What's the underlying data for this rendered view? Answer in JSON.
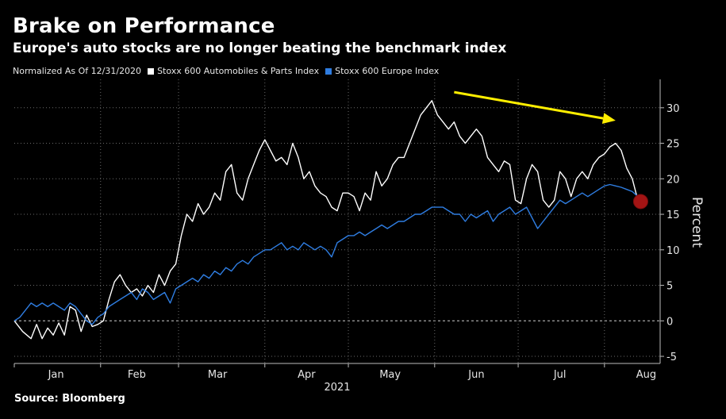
{
  "header": {
    "title": "Brake on Performance",
    "subtitle": "Europe's auto stocks are no longer beating the benchmark index"
  },
  "legend": {
    "note": "Normalized As Of 12/31/2020",
    "items": [
      {
        "label": "Stoxx 600 Automobiles & Parts Index",
        "color": "#ffffff"
      },
      {
        "label": "Stoxx 600 Europe Index",
        "color": "#2f7de1"
      }
    ]
  },
  "footer": {
    "source": "Source: Bloomberg"
  },
  "chart_data": {
    "type": "line",
    "xlabel": "2021",
    "ylabel": "Percent",
    "ylim": [
      -6,
      34
    ],
    "yticks": [
      -5,
      0,
      5,
      10,
      15,
      20,
      25,
      30
    ],
    "xlim": [
      0,
      232
    ],
    "months": [
      {
        "label": "Jan",
        "center": 15,
        "boundary": 0
      },
      {
        "label": "Feb",
        "center": 44,
        "boundary": 31
      },
      {
        "label": "Mar",
        "center": 73,
        "boundary": 59
      },
      {
        "label": "Apr",
        "center": 105,
        "boundary": 90
      },
      {
        "label": "May",
        "center": 135,
        "boundary": 120
      },
      {
        "label": "Jun",
        "center": 166,
        "boundary": 151
      },
      {
        "label": "Jul",
        "center": 196,
        "boundary": 181
      },
      {
        "label": "Aug",
        "center": 227,
        "boundary": 212
      }
    ],
    "grid": true,
    "zero_line": true,
    "axis_side": "right",
    "series": [
      {
        "name": "Stoxx 600 Automobiles & Parts Index",
        "color": "#ffffff",
        "points": [
          [
            0,
            0
          ],
          [
            3,
            -1.5
          ],
          [
            6,
            -2.5
          ],
          [
            8,
            -0.5
          ],
          [
            10,
            -2.5
          ],
          [
            12,
            -1
          ],
          [
            14,
            -2
          ],
          [
            16,
            -0.3
          ],
          [
            18,
            -2
          ],
          [
            20,
            2
          ],
          [
            22,
            1.5
          ],
          [
            24,
            -1.5
          ],
          [
            26,
            0.8
          ],
          [
            28,
            -0.8
          ],
          [
            30,
            -0.5
          ],
          [
            32,
            0
          ],
          [
            34,
            3
          ],
          [
            36,
            5.5
          ],
          [
            38,
            6.5
          ],
          [
            40,
            5
          ],
          [
            42,
            4
          ],
          [
            44,
            4.5
          ],
          [
            46,
            3.5
          ],
          [
            48,
            5
          ],
          [
            50,
            4
          ],
          [
            52,
            6.5
          ],
          [
            54,
            5
          ],
          [
            56,
            7
          ],
          [
            58,
            8
          ],
          [
            60,
            12
          ],
          [
            62,
            15
          ],
          [
            64,
            14
          ],
          [
            66,
            16.5
          ],
          [
            68,
            15
          ],
          [
            70,
            16
          ],
          [
            72,
            18
          ],
          [
            74,
            17
          ],
          [
            76,
            21
          ],
          [
            78,
            22
          ],
          [
            80,
            18
          ],
          [
            82,
            17
          ],
          [
            84,
            20
          ],
          [
            86,
            22
          ],
          [
            88,
            24
          ],
          [
            90,
            25.5
          ],
          [
            92,
            24
          ],
          [
            94,
            22.5
          ],
          [
            96,
            23
          ],
          [
            98,
            22
          ],
          [
            100,
            25
          ],
          [
            102,
            23
          ],
          [
            104,
            20
          ],
          [
            106,
            21
          ],
          [
            108,
            19
          ],
          [
            110,
            18
          ],
          [
            112,
            17.5
          ],
          [
            114,
            16
          ],
          [
            116,
            15.5
          ],
          [
            118,
            18
          ],
          [
            120,
            18
          ],
          [
            122,
            17.5
          ],
          [
            124,
            15.5
          ],
          [
            126,
            18
          ],
          [
            128,
            17
          ],
          [
            130,
            21
          ],
          [
            132,
            19
          ],
          [
            134,
            20
          ],
          [
            136,
            22
          ],
          [
            138,
            23
          ],
          [
            140,
            23
          ],
          [
            142,
            25
          ],
          [
            144,
            27
          ],
          [
            146,
            29
          ],
          [
            148,
            30
          ],
          [
            150,
            31
          ],
          [
            152,
            29
          ],
          [
            154,
            28
          ],
          [
            156,
            27
          ],
          [
            158,
            28
          ],
          [
            160,
            26
          ],
          [
            162,
            25
          ],
          [
            164,
            26
          ],
          [
            166,
            27
          ],
          [
            168,
            26
          ],
          [
            170,
            23
          ],
          [
            172,
            22
          ],
          [
            174,
            21
          ],
          [
            176,
            22.5
          ],
          [
            178,
            22
          ],
          [
            180,
            17
          ],
          [
            182,
            16.5
          ],
          [
            184,
            20
          ],
          [
            186,
            22
          ],
          [
            188,
            21
          ],
          [
            190,
            17
          ],
          [
            192,
            16
          ],
          [
            194,
            17
          ],
          [
            196,
            21
          ],
          [
            198,
            20
          ],
          [
            200,
            17.5
          ],
          [
            202,
            20
          ],
          [
            204,
            21
          ],
          [
            206,
            20
          ],
          [
            208,
            22
          ],
          [
            210,
            23
          ],
          [
            212,
            23.5
          ],
          [
            214,
            24.5
          ],
          [
            216,
            25
          ],
          [
            218,
            24
          ],
          [
            220,
            21.5
          ],
          [
            222,
            20
          ],
          [
            224,
            17
          ]
        ]
      },
      {
        "name": "Stoxx 600 Europe Index",
        "color": "#2f7de1",
        "points": [
          [
            0,
            0
          ],
          [
            2,
            0.5
          ],
          [
            4,
            1.5
          ],
          [
            6,
            2.5
          ],
          [
            8,
            2
          ],
          [
            10,
            2.5
          ],
          [
            12,
            2
          ],
          [
            14,
            2.5
          ],
          [
            16,
            2
          ],
          [
            18,
            1.5
          ],
          [
            20,
            2.5
          ],
          [
            22,
            2
          ],
          [
            24,
            1
          ],
          [
            26,
            0
          ],
          [
            28,
            -0.5
          ],
          [
            30,
            0.5
          ],
          [
            32,
            1
          ],
          [
            34,
            2
          ],
          [
            36,
            2.5
          ],
          [
            38,
            3
          ],
          [
            40,
            3.5
          ],
          [
            42,
            4
          ],
          [
            44,
            3
          ],
          [
            46,
            4.5
          ],
          [
            48,
            4
          ],
          [
            50,
            3
          ],
          [
            52,
            3.5
          ],
          [
            54,
            4
          ],
          [
            56,
            2.5
          ],
          [
            58,
            4.5
          ],
          [
            60,
            5
          ],
          [
            62,
            5.5
          ],
          [
            64,
            6
          ],
          [
            66,
            5.5
          ],
          [
            68,
            6.5
          ],
          [
            70,
            6
          ],
          [
            72,
            7
          ],
          [
            74,
            6.5
          ],
          [
            76,
            7.5
          ],
          [
            78,
            7
          ],
          [
            80,
            8
          ],
          [
            82,
            8.5
          ],
          [
            84,
            8
          ],
          [
            86,
            9
          ],
          [
            88,
            9.5
          ],
          [
            90,
            10
          ],
          [
            92,
            10
          ],
          [
            94,
            10.5
          ],
          [
            96,
            11
          ],
          [
            98,
            10
          ],
          [
            100,
            10.5
          ],
          [
            102,
            10
          ],
          [
            104,
            11
          ],
          [
            106,
            10.5
          ],
          [
            108,
            10
          ],
          [
            110,
            10.5
          ],
          [
            112,
            10
          ],
          [
            114,
            9
          ],
          [
            116,
            11
          ],
          [
            118,
            11.5
          ],
          [
            120,
            12
          ],
          [
            122,
            12
          ],
          [
            124,
            12.5
          ],
          [
            126,
            12
          ],
          [
            128,
            12.5
          ],
          [
            130,
            13
          ],
          [
            132,
            13.5
          ],
          [
            134,
            13
          ],
          [
            136,
            13.5
          ],
          [
            138,
            14
          ],
          [
            140,
            14
          ],
          [
            142,
            14.5
          ],
          [
            144,
            15
          ],
          [
            146,
            15
          ],
          [
            148,
            15.5
          ],
          [
            150,
            16
          ],
          [
            152,
            16
          ],
          [
            154,
            16
          ],
          [
            156,
            15.5
          ],
          [
            158,
            15
          ],
          [
            160,
            15
          ],
          [
            162,
            14
          ],
          [
            164,
            15
          ],
          [
            166,
            14.5
          ],
          [
            168,
            15
          ],
          [
            170,
            15.5
          ],
          [
            172,
            14
          ],
          [
            174,
            15
          ],
          [
            176,
            15.5
          ],
          [
            178,
            16
          ],
          [
            180,
            15
          ],
          [
            182,
            15.5
          ],
          [
            184,
            16
          ],
          [
            186,
            14.5
          ],
          [
            188,
            13
          ],
          [
            190,
            14
          ],
          [
            192,
            15
          ],
          [
            194,
            16
          ],
          [
            196,
            17
          ],
          [
            198,
            16.5
          ],
          [
            200,
            17
          ],
          [
            202,
            17.5
          ],
          [
            204,
            18
          ],
          [
            206,
            17.5
          ],
          [
            208,
            18
          ],
          [
            210,
            18.5
          ],
          [
            212,
            19
          ],
          [
            214,
            19.2
          ],
          [
            216,
            19
          ],
          [
            218,
            18.8
          ],
          [
            220,
            18.5
          ],
          [
            222,
            18.2
          ],
          [
            224,
            17.5
          ]
        ]
      }
    ],
    "annotations": [
      {
        "type": "arrow",
        "color": "#ffee00",
        "from": [
          158,
          32.2
        ],
        "to": [
          216,
          28.2
        ]
      },
      {
        "type": "marker",
        "color": "#a31414",
        "at": [
          225,
          16.8
        ]
      }
    ]
  }
}
